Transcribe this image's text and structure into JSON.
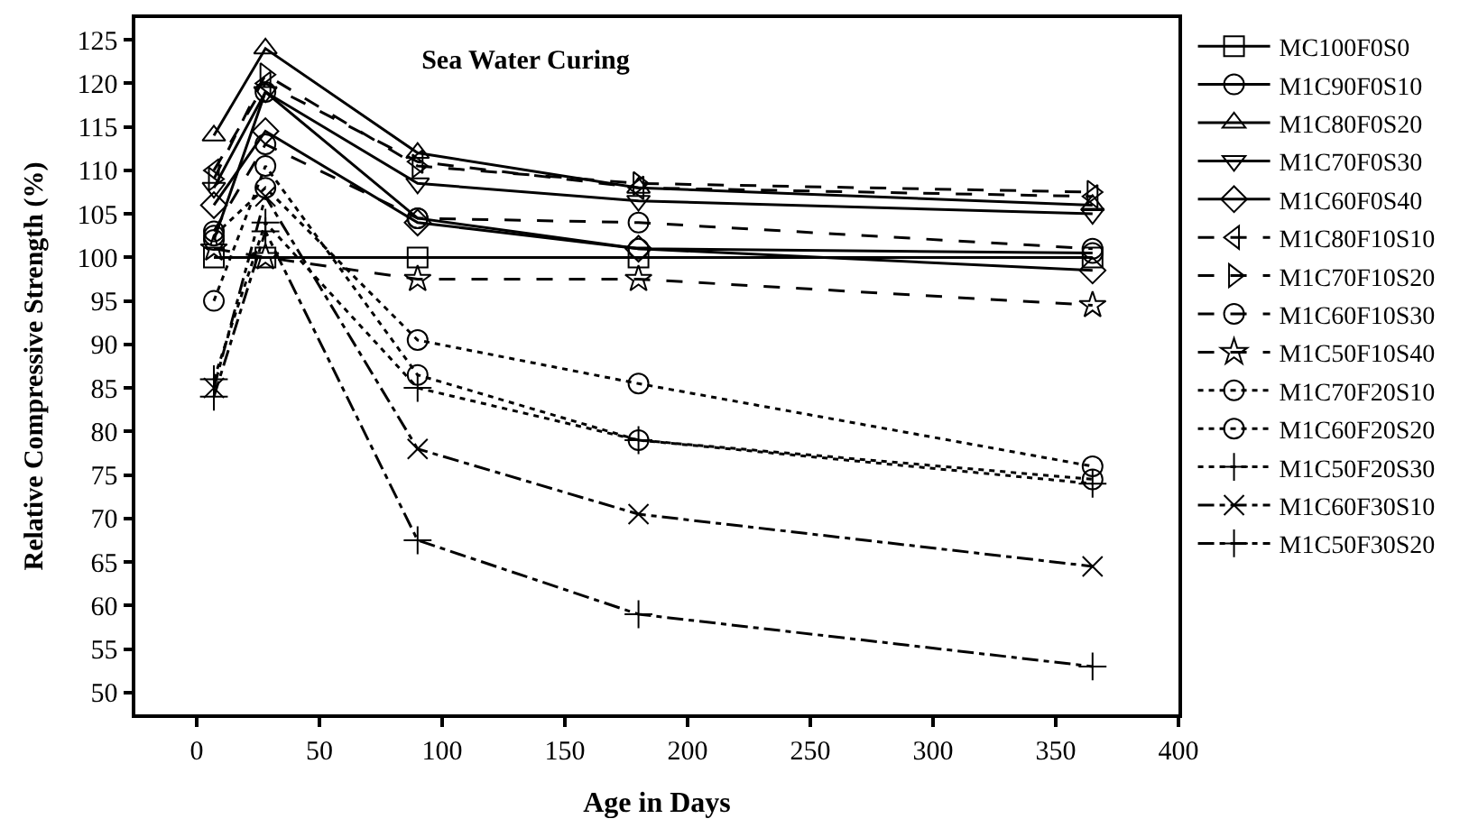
{
  "chart_data": {
    "type": "line",
    "title": "Sea Water Curing",
    "xlabel": "Age in Days",
    "ylabel": "Relative Compressive Strength (%)",
    "x": [
      7,
      28,
      90,
      180,
      365
    ],
    "xlim": [
      -25,
      400
    ],
    "xticks": [
      0,
      50,
      100,
      150,
      200,
      250,
      300,
      350,
      400
    ],
    "ylim": [
      47.5,
      127.5
    ],
    "yticks": [
      50,
      55,
      60,
      65,
      70,
      75,
      80,
      85,
      90,
      95,
      100,
      105,
      110,
      115,
      120,
      125
    ],
    "legend": "right",
    "series": [
      {
        "name": "MC100F0S0",
        "color": "#000000",
        "marker": "square",
        "line_style": "solid",
        "values": [
          100,
          100,
          100,
          100,
          100
        ]
      },
      {
        "name": "M1C90F0S10",
        "color": "#000000",
        "marker": "circle",
        "line_style": "solid",
        "values": [
          102,
          119,
          104.5,
          101,
          100.5
        ]
      },
      {
        "name": "M1C80F0S20",
        "color": "#000000",
        "marker": "triangle",
        "line_style": "solid",
        "values": [
          114,
          124,
          112,
          108,
          106
        ]
      },
      {
        "name": "M1C70F0S30",
        "color": "#000000",
        "marker": "triangle-down",
        "line_style": "solid",
        "values": [
          108,
          119,
          108.5,
          106.5,
          105
        ]
      },
      {
        "name": "M1C60F0S40",
        "color": "#000000",
        "marker": "diamond",
        "line_style": "solid",
        "values": [
          106,
          114.5,
          104,
          101,
          98.5
        ]
      },
      {
        "name": "M1C80F10S10",
        "color": "#000000",
        "marker": "triangle-left",
        "line_style": "dashed",
        "values": [
          110,
          120,
          111,
          108,
          107
        ]
      },
      {
        "name": "M1C70F10S20",
        "color": "#000000",
        "marker": "triangle-right",
        "line_style": "dashed",
        "values": [
          109,
          121,
          110.5,
          108.5,
          107.5
        ]
      },
      {
        "name": "M1C60F10S30",
        "color": "#000000",
        "marker": "circle",
        "line_style": "dashed",
        "values": [
          103,
          113,
          104.5,
          104,
          101
        ]
      },
      {
        "name": "M1C50F10S40",
        "color": "#000000",
        "marker": "star",
        "line_style": "dashed",
        "values": [
          101,
          100,
          97.5,
          97.5,
          94.5
        ]
      },
      {
        "name": "M1C70F20S10",
        "color": "#000000",
        "marker": "circle",
        "line_style": "dotted",
        "values": [
          102.5,
          108,
          90.5,
          85.5,
          76
        ]
      },
      {
        "name": "M1C60F20S20",
        "color": "#000000",
        "marker": "circle",
        "line_style": "dotted",
        "values": [
          95,
          110.5,
          86.5,
          79,
          74.5
        ]
      },
      {
        "name": "M1C50F20S30",
        "color": "#000000",
        "marker": "cross",
        "line_style": "dotted",
        "values": [
          86,
          104,
          85,
          79,
          74
        ]
      },
      {
        "name": "M1C60F30S10",
        "color": "#000000",
        "marker": "x",
        "line_style": "dashdot",
        "values": [
          85,
          107,
          78,
          70.5,
          64.5
        ]
      },
      {
        "name": "M1C50F30S20",
        "color": "#000000",
        "marker": "cross",
        "line_style": "dashdot",
        "values": [
          84,
          103,
          67.5,
          59,
          53
        ]
      }
    ]
  }
}
